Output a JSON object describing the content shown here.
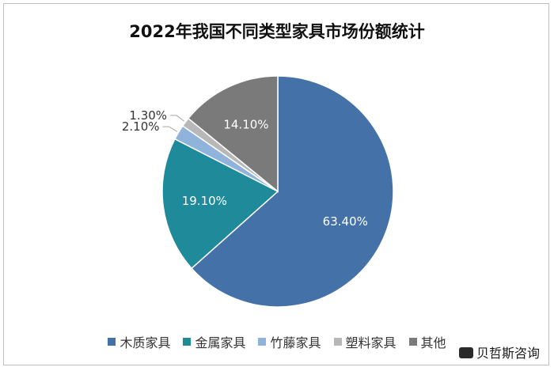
{
  "chart_data": {
    "type": "pie",
    "title": "2022年我国不同类型家具市场份额统计",
    "categories": [
      "木质家具",
      "金属家具",
      "竹藤家具",
      "塑料家具",
      "其他"
    ],
    "values": [
      63.4,
      19.1,
      2.1,
      1.3,
      14.1
    ],
    "labels": [
      "63.40%",
      "19.10%",
      "2.10%",
      "1.30%",
      "14.10%"
    ],
    "colors": [
      "#4472a8",
      "#1e8a9a",
      "#8fb3db",
      "#b8b8b8",
      "#7a7a7a"
    ],
    "legend_position": "bottom"
  },
  "watermark": {
    "text": "贝哲斯咨询"
  }
}
